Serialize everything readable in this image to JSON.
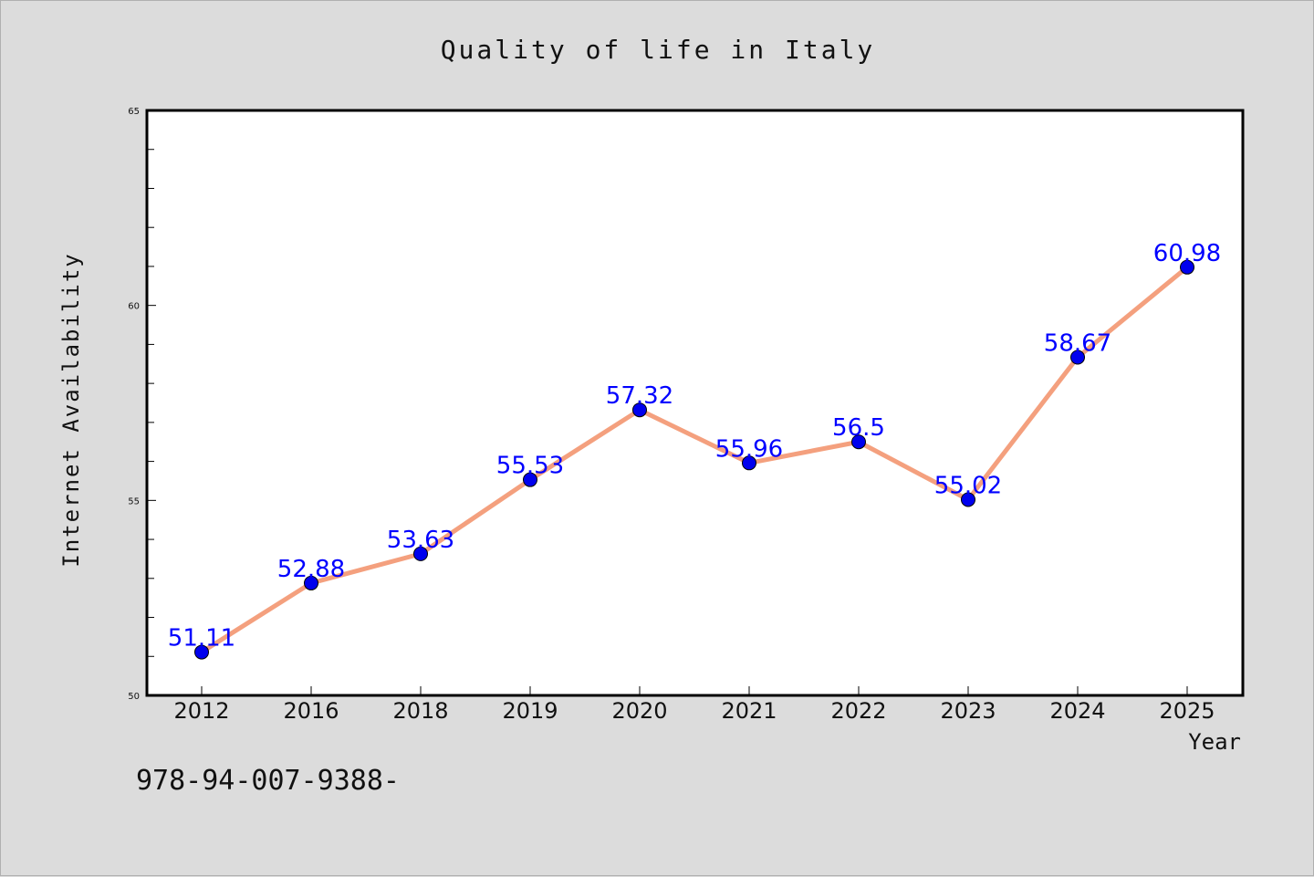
{
  "chart_data": {
    "type": "line",
    "title": "Quality of life in Italy",
    "xlabel": "Year",
    "ylabel": "Internet Availability",
    "categories": [
      "2012",
      "2016",
      "2018",
      "2019",
      "2020",
      "2021",
      "2022",
      "2023",
      "2024",
      "2025"
    ],
    "series": [
      {
        "values": [
          51.11,
          52.88,
          53.63,
          55.53,
          57.32,
          55.96,
          56.5,
          55.02,
          58.67,
          60.98
        ],
        "labels": [
          "51.11",
          "52.88",
          "53.63",
          "55.53",
          "57.32",
          "55.96",
          "56.5",
          "55.02",
          "58.67",
          "60.98"
        ]
      }
    ],
    "ylim": [
      50,
      65
    ],
    "yticks": [
      "50",
      "55",
      "60",
      "65"
    ],
    "grid": false,
    "legend": "none",
    "colors": {
      "line": "#f4a07e",
      "marker": "#0000ee",
      "label": "#0000ff",
      "background": "#dcdcdc",
      "plot_background": "#ffffff"
    }
  },
  "footer": {
    "text": "978-94-007-9388-"
  }
}
